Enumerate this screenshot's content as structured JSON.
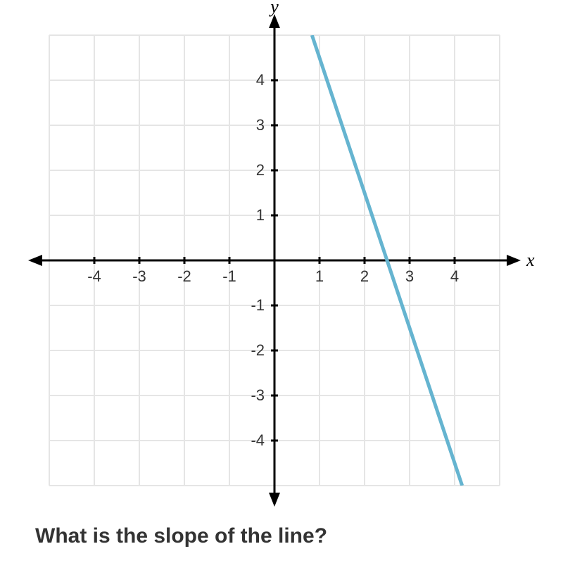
{
  "chart": {
    "type": "line",
    "background_color": "#ffffff",
    "grid_color": "#e5e5e5",
    "axis_color": "#000000",
    "xlim": [
      -5,
      5
    ],
    "ylim": [
      -5,
      5
    ],
    "xtick_step": 1,
    "ytick_step": 1,
    "xticks": [
      -4,
      -3,
      -2,
      -1,
      1,
      2,
      3,
      4
    ],
    "yticks": [
      4,
      3,
      2,
      1,
      -1,
      -2,
      -3,
      -4
    ],
    "x_axis_label": "x",
    "y_axis_label": "y",
    "axis_label_fontsize": 26,
    "tick_label_fontsize": 22,
    "tick_label_color": "#333333",
    "axis_line_width": 3,
    "grid_line_width": 2,
    "tick_mark_length": 10,
    "line": {
      "slope": -3,
      "x_intercept": 2.5,
      "points": [
        {
          "x": 0.833,
          "y": 5
        },
        {
          "x": 4.167,
          "y": -5
        }
      ],
      "color": "#65b4d0",
      "width": 5
    }
  },
  "question_text": "What is the slope of the line?"
}
